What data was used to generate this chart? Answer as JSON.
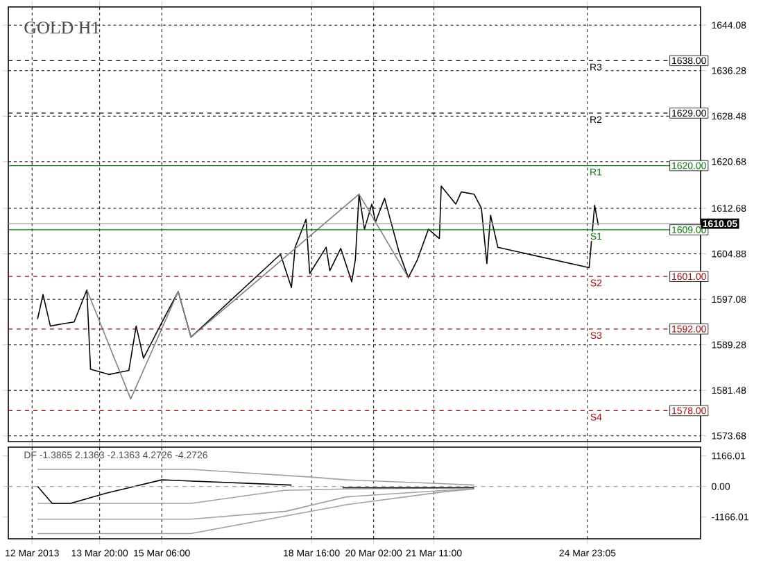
{
  "chart_data": [
    {
      "type": "line",
      "title": "GOLD H1",
      "series": [
        {
          "color": "#000000",
          "x": [
            "2013-03-12T10:00",
            "2013-03-12T13:00",
            "2013-03-12T17:00",
            "2013-03-13T00:00",
            "2013-03-13T06:00",
            "2013-03-13T13:00",
            "2013-03-13T15:00",
            "2013-03-14T01:00",
            "2013-03-14T12:00",
            "2013-03-14T16:00",
            "2013-03-14T20:00",
            "2013-03-15T07:00",
            "2013-03-15T15:00",
            "2013-03-15T22:00",
            "2013-03-17T23:00",
            "2013-03-18T05:00",
            "2013-03-18T07:00",
            "2013-03-18T13:00",
            "2013-03-18T15:00",
            "2013-03-19T00:00",
            "2013-03-19T02:00",
            "2013-03-19T08:00",
            "2013-03-19T14:00",
            "2013-03-19T16:00",
            "2013-03-19T18:00",
            "2013-03-19T21:00",
            "2013-03-20T01:00",
            "2013-03-20T03:00",
            "2013-03-20T08:00",
            "2013-03-20T16:00",
            "2013-03-20T21:00",
            "2013-03-21T02:00",
            "2013-03-21T08:00",
            "2013-03-21T14:00",
            "2013-03-21T15:00",
            "2013-03-21T23:00",
            "2013-03-22T02:00",
            "2013-03-22T09:00",
            "2013-03-22T13:00",
            "2013-03-22T16:00",
            "2013-03-22T18:00",
            "2013-03-22T22:00",
            "2013-03-25T00:00",
            "2013-03-25T03:00",
            "2013-03-25T05:00"
          ],
          "values": [
            1593.7,
            1597.9,
            1592.5,
            1592.9,
            1593.2,
            1598.7,
            1585.1,
            1584.2,
            1584.9,
            1592.5,
            1587,
            1593.7,
            1598.4,
            1590.6,
            1604.8,
            1599.1,
            1606,
            1610.8,
            1601.5,
            1606,
            1602,
            1605.8,
            1600.1,
            1603.9,
            1615.1,
            1609.1,
            1613.4,
            1610.3,
            1614.4,
            1605.1,
            1600.8,
            1603.9,
            1609.1,
            1607.5,
            1616.5,
            1613.4,
            1615.5,
            1615.1,
            1612.7,
            1603.2,
            1611.5,
            1606,
            1602.5,
            1613.2,
            1609.8
          ]
        },
        {
          "color": "#808080",
          "x": [
            "2013-03-13T13:00",
            "2013-03-14T13:00",
            "2013-03-15T15:00",
            "2013-03-15T22:00",
            "2013-03-19T18:00",
            "2013-03-20T21:00"
          ],
          "values": [
            1598.7,
            1580,
            1598.4,
            1590.6,
            1615.1,
            1600.8
          ]
        }
      ],
      "xlim": [
        "2013-03-11T18:00",
        "2013-03-27T13:00"
      ],
      "xticks": [
        {
          "value": "2013-03-12T07:00",
          "label": null
        },
        {
          "value": "2013-03-13T20:00",
          "label": null
        },
        {
          "value": "2013-03-15T06:00",
          "label": null
        },
        {
          "value": "2013-03-18T16:00",
          "label": null
        },
        {
          "value": "2013-03-20T02:00",
          "label": null
        },
        {
          "value": "2013-03-21T11:00",
          "label": null
        },
        {
          "value": "2013-03-24T23:05",
          "label": null
        }
      ],
      "ylim": [
        1572.7,
        1647.2
      ],
      "yticks": [
        1644.08,
        1636.28,
        1628.48,
        1620.68,
        1612.68,
        1604.88,
        1597.08,
        1589.28,
        1581.48,
        1573.68
      ],
      "tick_labels": "y",
      "grid": true,
      "marker": "none",
      "line_style": "solid",
      "ref_lines": [
        {
          "axis": "y",
          "value": 1638,
          "label": "R3",
          "color": "#000000",
          "line_style": "dashed"
        },
        {
          "axis": "y",
          "value": 1629,
          "label": "R2",
          "color": "#000000",
          "line_style": "dashed"
        },
        {
          "axis": "y",
          "value": 1620,
          "label": "R1",
          "color": "#008000",
          "line_style": "solid"
        },
        {
          "axis": "y",
          "value": 1609,
          "label": "S1",
          "color": "#008000",
          "line_style": "solid"
        },
        {
          "axis": "y",
          "value": 1601,
          "label": "S2",
          "color": "#c00000",
          "line_style": "dashed"
        },
        {
          "axis": "y",
          "value": 1592,
          "label": "S3",
          "color": "#c00000",
          "line_style": "dashed"
        },
        {
          "axis": "y",
          "value": 1578,
          "label": "S4",
          "color": "#c00000",
          "line_style": "dashed"
        },
        {
          "axis": "y",
          "value": 1610.05,
          "color": "#a0a0a0",
          "line_style": "solid"
        }
      ],
      "annotations": [
        {
          "text": "1638.00",
          "x": "2013-03-26T20:00",
          "y": 1638
        },
        {
          "text": "1629.00",
          "x": "2013-03-26T20:00",
          "y": 1629
        },
        {
          "text": "1620.00",
          "x": "2013-03-26T20:00",
          "y": 1620
        },
        {
          "text": "1609.00",
          "x": "2013-03-26T20:00",
          "y": 1609
        },
        {
          "text": "1601.00",
          "x": "2013-03-26T20:00",
          "y": 1601
        },
        {
          "text": "1592.00",
          "x": "2013-03-26T20:00",
          "y": 1592
        },
        {
          "text": "1578.00",
          "x": "2013-03-26T20:00",
          "y": 1578
        },
        "1610.05"
      ]
    },
    {
      "type": "line",
      "title": "DF -1.3865 2.1363 -2.1363 4.2726 -4.2726",
      "series": [
        {
          "color": "#a0a0a0",
          "x": [
            "2013-03-12T10:00",
            "2013-03-15T22:00",
            "2013-03-18T17:00",
            "2013-03-19T11:00",
            "2013-03-21T17:00",
            "2013-03-22T09:00"
          ],
          "values": [
            650,
            650,
            350,
            250,
            100,
            50
          ]
        },
        {
          "color": "#a0a0a0",
          "x": [
            "2013-03-12T10:00",
            "2013-03-15T22:00",
            "2013-03-18T01:00",
            "2013-03-19T11:00",
            "2013-03-22T09:00"
          ],
          "values": [
            -650,
            -650,
            -150,
            -100,
            -50
          ]
        },
        {
          "color": "#a0a0a0",
          "x": [
            "2013-03-12T10:00",
            "2013-03-15T22:00",
            "2013-03-18T02:00",
            "2013-03-19T11:00",
            "2013-03-21T17:00",
            "2013-03-22T09:00"
          ],
          "values": [
            -1250,
            -1250,
            -950,
            -400,
            -150,
            -100
          ]
        },
        {
          "color": "#a0a0a0",
          "x": [
            "2013-03-12T10:00",
            "2013-03-15T22:00",
            "2013-03-19T11:00",
            "2013-03-21T17:00",
            "2013-03-22T09:00"
          ],
          "values": [
            -1800,
            -1800,
            -700,
            -200,
            -100
          ]
        },
        {
          "color": "#000000",
          "x": [
            "2013-03-12T10:00",
            "2013-03-12T18:00",
            "2013-03-13T04:00",
            "2013-03-14T00:00",
            "2013-03-14T12:00",
            "2013-03-15T06:00",
            "2013-03-18T05:00",
            "2013-03-18T19:00",
            "2013-03-19T09:00",
            "2013-03-22T09:00"
          ],
          "values": [
            0,
            -650,
            -650,
            -250,
            -50,
            250,
            50,
            null,
            -50,
            -50
          ]
        }
      ],
      "xlim": [
        "2013-03-11T18:00",
        "2013-03-27T13:00"
      ],
      "xticks": [
        {
          "value": "2013-03-12T07:00",
          "label": "12 Mar 2013"
        },
        {
          "value": "2013-03-13T20:00",
          "label": "13 Mar 20:00"
        },
        {
          "value": "2013-03-15T06:00",
          "label": "15 Mar 06:00"
        },
        {
          "value": "2013-03-18T16:00",
          "label": "18 Mar 16:00"
        },
        {
          "value": "2013-03-20T02:00",
          "label": "20 Mar 02:00"
        },
        {
          "value": "2013-03-21T11:00",
          "label": "21 Mar 11:00"
        },
        {
          "value": "2013-03-24T23:05",
          "label": "24 Mar 23:05"
        }
      ],
      "ylim": [
        -2000,
        1500
      ],
      "yticks": [
        {
          "value": 1166.01,
          "label": "1166.01"
        },
        {
          "value": 0,
          "label": "0.00"
        },
        {
          "value": -1166.01,
          "label": "-1166.01"
        }
      ],
      "grid": "x",
      "marker": "none",
      "line_style": "solid",
      "ref_lines": [
        {
          "axis": "y",
          "value": 0,
          "color": "#a0a0a0",
          "line_style": "dashed"
        }
      ]
    }
  ]
}
